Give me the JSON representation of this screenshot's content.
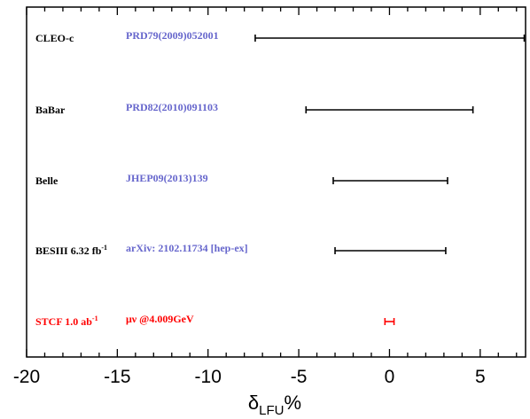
{
  "chart_data": {
    "type": "forest",
    "xlim": [
      -20,
      7.5
    ],
    "xticks": [
      -20,
      -15,
      -10,
      -5,
      0,
      5
    ],
    "tick_labels": [
      "-20",
      "-15",
      "-10",
      "-5",
      "0",
      "5"
    ],
    "xlabel": {
      "base": "δ",
      "sub": "LFU",
      "suffix": "%"
    },
    "grid": false,
    "rows": [
      {
        "experiment": "CLEO-c",
        "sup": "",
        "reference": "PRD79(2009)052001",
        "low": -7.4,
        "high": 7.5,
        "color": "#000000",
        "label_color": "#000000",
        "ref_color": "#6666cc"
      },
      {
        "experiment": "BaBar",
        "sup": "",
        "reference": "PRD82(2010)091103",
        "low": -4.6,
        "high": 4.6,
        "color": "#000000",
        "label_color": "#000000",
        "ref_color": "#6666cc"
      },
      {
        "experiment": "Belle",
        "sup": "",
        "reference": "JHEP09(2013)139",
        "low": -3.1,
        "high": 3.2,
        "color": "#000000",
        "label_color": "#000000",
        "ref_color": "#6666cc"
      },
      {
        "experiment": "BESIII 6.32 fb",
        "sup": "-1",
        "reference": "arXiv: 2102.11734 [hep-ex]",
        "low": -3.0,
        "high": 3.1,
        "color": "#000000",
        "label_color": "#000000",
        "ref_color": "#6666cc"
      },
      {
        "experiment": "STCF 1.0 ab",
        "sup": "-1",
        "reference": "μν @4.009GeV",
        "low": -0.25,
        "high": 0.25,
        "color": "#ff0000",
        "label_color": "#ff0000",
        "ref_color": "#ff0000"
      }
    ]
  }
}
